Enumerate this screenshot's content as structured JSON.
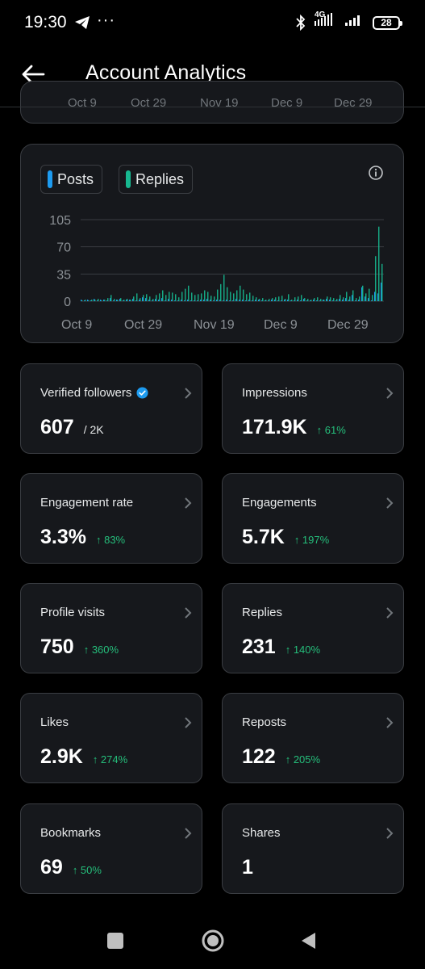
{
  "status_bar": {
    "time": "19:30",
    "dots": "···",
    "network": "4G",
    "battery": "28"
  },
  "header": {
    "title": "Account Analytics"
  },
  "prev_card": {
    "ghost_labels": [
      "Oct 9",
      "Oct 29",
      "Nov 19",
      "Dec 9",
      "Dec 29"
    ]
  },
  "chart": {
    "legend": [
      {
        "label": "Posts",
        "color": "#1d9bf0"
      },
      {
        "label": "Replies",
        "color": "#17b890"
      }
    ]
  },
  "chart_data": {
    "type": "bar",
    "y_ticks": [
      0,
      35,
      70,
      105
    ],
    "ylim": [
      0,
      105
    ],
    "x_tick_labels": [
      "Oct 9",
      "Oct 29",
      "Nov 19",
      "Dec 9",
      "Dec 29"
    ],
    "grid": true,
    "legend_placement": "top-left",
    "series": [
      {
        "name": "Posts",
        "color": "#1d9bf0",
        "values": [
          2,
          1,
          2,
          1,
          3,
          1,
          2,
          2,
          1,
          4,
          1,
          2,
          3,
          1,
          2,
          2,
          3,
          1,
          2,
          5,
          4,
          2,
          1,
          3,
          2,
          4,
          1,
          3,
          2,
          1,
          1,
          2,
          1,
          2,
          1,
          1,
          1,
          2,
          2,
          3,
          2,
          1,
          2,
          2,
          1,
          2,
          1,
          1,
          3,
          2,
          2,
          1,
          2,
          1,
          2,
          2,
          1,
          1,
          1,
          2,
          2,
          1,
          1,
          2,
          2,
          1,
          1,
          2,
          1,
          3,
          1,
          1,
          2,
          1,
          1,
          2,
          3,
          2,
          1,
          1,
          3,
          2,
          4,
          2,
          8,
          1,
          2,
          18,
          6,
          4,
          1,
          12,
          10,
          24
        ]
      },
      {
        "name": "Replies",
        "color": "#17b890",
        "values": [
          1,
          2,
          1,
          2,
          2,
          3,
          1,
          2,
          4,
          8,
          3,
          2,
          4,
          2,
          3,
          2,
          6,
          10,
          4,
          8,
          9,
          6,
          3,
          8,
          10,
          14,
          8,
          12,
          11,
          9,
          5,
          12,
          16,
          20,
          11,
          8,
          9,
          10,
          14,
          12,
          7,
          6,
          15,
          22,
          34,
          18,
          12,
          10,
          14,
          20,
          15,
          9,
          11,
          7,
          5,
          3,
          4,
          2,
          3,
          4,
          5,
          6,
          7,
          3,
          9,
          2,
          5,
          6,
          8,
          4,
          3,
          2,
          4,
          5,
          3,
          2,
          6,
          5,
          4,
          3,
          8,
          5,
          12,
          6,
          14,
          4,
          6,
          20,
          10,
          16,
          8,
          58,
          96,
          48
        ]
      }
    ]
  },
  "stats": [
    {
      "label": "Verified followers",
      "value": "607",
      "suffix": "/ 2K",
      "change": "",
      "verified": true
    },
    {
      "label": "Impressions",
      "value": "171.9K",
      "change": "↑ 61%"
    },
    {
      "label": "Engagement rate",
      "value": "3.3%",
      "change": "↑ 83%"
    },
    {
      "label": "Engagements",
      "value": "5.7K",
      "change": "↑ 197%"
    },
    {
      "label": "Profile visits",
      "value": "750",
      "change": "↑ 360%"
    },
    {
      "label": "Replies",
      "value": "231",
      "change": "↑ 140%"
    },
    {
      "label": "Likes",
      "value": "2.9K",
      "change": "↑ 274%"
    },
    {
      "label": "Reposts",
      "value": "122",
      "change": "↑ 205%"
    },
    {
      "label": "Bookmarks",
      "value": "69",
      "change": "↑ 50%"
    },
    {
      "label": "Shares",
      "value": "1",
      "change": ""
    }
  ]
}
